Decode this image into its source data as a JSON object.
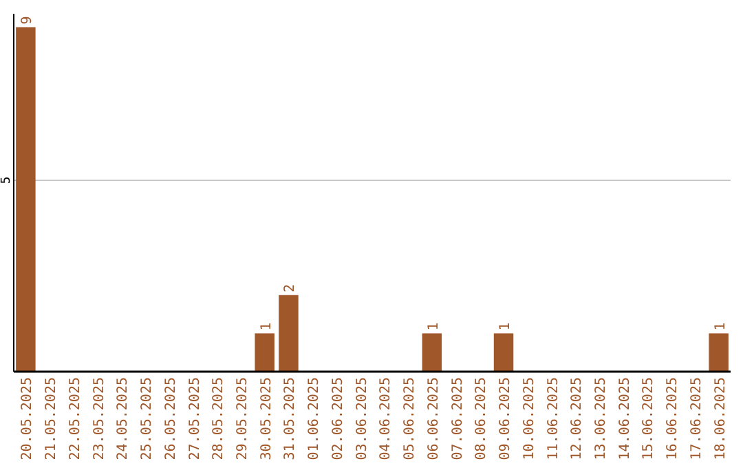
{
  "chart_data": {
    "type": "bar",
    "categories": [
      "20.05.2025",
      "21.05.2025",
      "22.05.2025",
      "23.05.2025",
      "24.05.2025",
      "25.05.2025",
      "26.05.2025",
      "27.05.2025",
      "28.05.2025",
      "29.05.2025",
      "30.05.2025",
      "31.05.2025",
      "01.06.2025",
      "02.06.2025",
      "03.06.2025",
      "04.06.2025",
      "05.06.2025",
      "06.06.2025",
      "07.06.2025",
      "08.06.2025",
      "09.06.2025",
      "10.06.2025",
      "11.06.2025",
      "12.06.2025",
      "13.06.2025",
      "14.06.2025",
      "15.06.2025",
      "16.06.2025",
      "17.06.2025",
      "18.06.2025"
    ],
    "values": [
      9,
      0,
      0,
      0,
      0,
      0,
      0,
      0,
      0,
      0,
      1,
      2,
      0,
      0,
      0,
      0,
      0,
      1,
      0,
      0,
      1,
      0,
      0,
      0,
      0,
      0,
      0,
      0,
      0,
      1
    ],
    "value_labels": [
      "9",
      null,
      null,
      null,
      null,
      null,
      null,
      null,
      null,
      null,
      "1",
      "2",
      null,
      null,
      null,
      null,
      null,
      "1",
      null,
      null,
      "1",
      null,
      null,
      null,
      null,
      null,
      null,
      null,
      null,
      "1"
    ],
    "color": "#a0572a",
    "ylim": [
      0,
      9.35
    ],
    "yticks": [
      5
    ],
    "grid": "y"
  }
}
